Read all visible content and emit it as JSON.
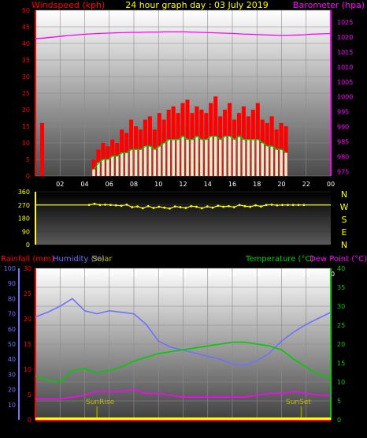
{
  "title": "24 hour graph day : 03 July 2019",
  "labels": {
    "windspeed": "Windspeed (kph)",
    "barometer": "Barometer (hpa)",
    "rainfall": "Rainfall (mm)",
    "humidity": "Humidity (%)",
    "solar": "Solar",
    "temperature": "Temperature (°C)",
    "dewpoint": "Dew Point (°C)",
    "sunrise": "SunRise",
    "sunset": "SunSet"
  },
  "colors": {
    "windspeed": "#ff0000",
    "gust": "#ff0000",
    "avgwind": "#00cc00",
    "barometer": "#ff00ff",
    "direction": "#ffff00",
    "humidity": "#7070ff",
    "temperature": "#00cc00",
    "dewpoint": "#ff00ff",
    "rain": "#ffff00",
    "sun": "#999900"
  },
  "compass": [
    "N",
    "W",
    "S",
    "E",
    "N"
  ],
  "chart_data": [
    {
      "type": "bar",
      "name": "wind",
      "x_ticks": [
        "02",
        "04",
        "06",
        "08",
        "10",
        "12",
        "14",
        "16",
        "18",
        "20",
        "22",
        "00"
      ],
      "left_axis": {
        "ticks": [
          0,
          5,
          10,
          15,
          20,
          25,
          30,
          35,
          40,
          45,
          50
        ],
        "ylim": [
          0,
          50
        ]
      },
      "right_axis": {
        "ticks": [
          975,
          980,
          985,
          990,
          995,
          1000,
          1005,
          1010,
          1015,
          1020,
          1025
        ],
        "ylim": [
          973.5,
          1029
        ]
      },
      "gust_hours": [
        0,
        0,
        0,
        0,
        0,
        0,
        0,
        0,
        0,
        0,
        0,
        0,
        0,
        0,
        0,
        0,
        0,
        0,
        0,
        0,
        0,
        0,
        0,
        0,
        0,
        0,
        0,
        0,
        0,
        0,
        0,
        0,
        0,
        0,
        0,
        0,
        0,
        0,
        0,
        0,
        0,
        0,
        0,
        0,
        0,
        0,
        0,
        0,
        0,
        0,
        0,
        0,
        0,
        0
      ],
      "gust": [
        0,
        16,
        0,
        0,
        0,
        0,
        0,
        0,
        0,
        0,
        0,
        0,
        5,
        8,
        10,
        9,
        11,
        10,
        14,
        13,
        17,
        15,
        14,
        17,
        18,
        14,
        19,
        17,
        20,
        21,
        19,
        22,
        23,
        19,
        21,
        20,
        19,
        22,
        24,
        18,
        20,
        22,
        17,
        19,
        21,
        18,
        20,
        22,
        17,
        16,
        18,
        14,
        16,
        15,
        0,
        0,
        0,
        0,
        0,
        0,
        0,
        0,
        0
      ],
      "average": [
        0,
        0,
        0,
        0,
        0,
        0,
        0,
        0,
        0,
        0,
        0,
        0,
        2,
        4,
        5,
        5,
        6,
        6,
        7,
        7,
        8,
        8,
        8,
        9,
        9,
        8,
        9,
        10,
        11,
        11,
        11,
        12,
        11,
        11,
        12,
        11,
        11,
        12,
        12,
        11,
        12,
        12,
        11,
        12,
        11,
        11,
        11,
        11,
        10,
        9,
        9,
        8,
        8,
        7,
        0,
        0,
        0,
        0,
        0,
        0,
        0,
        0,
        0
      ],
      "barometer": [
        1019.5,
        1019.7,
        1020.0,
        1020.3,
        1020.6,
        1020.8,
        1021.0,
        1021.2,
        1021.3,
        1021.4,
        1021.5,
        1021.6,
        1021.6,
        1021.7,
        1021.7,
        1021.8,
        1021.8,
        1021.8,
        1021.7,
        1021.6,
        1021.5,
        1021.4,
        1021.3,
        1021.2,
        1021.0,
        1020.9,
        1020.8,
        1020.7,
        1020.6,
        1020.6,
        1020.7,
        1020.8,
        1021.0,
        1021.1,
        1021.2
      ]
    },
    {
      "type": "scatter",
      "name": "wind direction",
      "y_ticks": [
        0,
        90,
        180,
        270,
        360
      ],
      "ylim": [
        0,
        360
      ],
      "values": [
        270,
        270,
        270,
        270,
        270,
        270,
        270,
        270,
        270,
        270,
        270,
        278,
        270,
        272,
        270,
        268,
        265,
        272,
        255,
        260,
        248,
        262,
        250,
        258,
        252,
        246,
        260,
        255,
        250,
        262,
        258,
        248,
        260,
        252,
        265,
        258,
        262,
        255,
        270,
        262,
        258,
        268,
        260,
        270,
        272,
        268,
        270,
        270,
        270,
        270,
        270,
        270,
        270,
        270,
        270,
        270
      ]
    },
    {
      "type": "line",
      "name": "temperature humidity",
      "x_ticks": [
        "02",
        "04",
        "06",
        "08",
        "10",
        "12",
        "14",
        "16",
        "18",
        "20",
        "22",
        "00"
      ],
      "rain_axis": {
        "ticks": [
          0,
          5,
          10,
          15,
          20,
          25,
          30
        ],
        "ylim": [
          0,
          30
        ]
      },
      "humidity_axis": {
        "ticks": [
          10,
          20,
          30,
          40,
          50,
          60,
          70,
          80,
          90,
          100
        ],
        "ylim": [
          0,
          100
        ]
      },
      "temp_axis": {
        "ticks": [
          0,
          5,
          10,
          15,
          20,
          25,
          30,
          35,
          40
        ],
        "ylim": [
          0,
          40
        ]
      },
      "hours": [
        0,
        1,
        2,
        3,
        4,
        5,
        6,
        7,
        8,
        9,
        10,
        11,
        12,
        13,
        14,
        15,
        16,
        17,
        18,
        19,
        20,
        21,
        22,
        23,
        24
      ],
      "humidity": [
        68,
        71,
        75,
        80,
        72,
        70,
        72,
        71,
        70,
        63,
        52,
        48,
        46,
        44,
        42,
        40,
        37,
        36,
        39,
        44,
        52,
        58,
        63,
        67,
        71
      ],
      "temperature": [
        11.5,
        10.5,
        10.0,
        13.0,
        13.5,
        12.5,
        13.0,
        14.0,
        15.5,
        16.5,
        17.5,
        18.0,
        18.5,
        19.0,
        19.5,
        20.0,
        20.5,
        20.5,
        20.0,
        19.5,
        18.5,
        16.0,
        14.0,
        12.0,
        11.0
      ],
      "dewpoint": [
        5.5,
        5.5,
        5.5,
        6.0,
        6.5,
        7.5,
        7.5,
        7.5,
        8.0,
        7.0,
        7.0,
        6.5,
        6.0,
        6.0,
        6.0,
        6.0,
        6.0,
        6.0,
        6.5,
        7.0,
        7.0,
        7.5,
        7.0,
        6.5,
        6.5
      ],
      "rain": [
        0,
        0,
        0,
        0,
        0,
        0,
        0,
        0,
        0,
        0,
        0,
        0,
        0,
        0,
        0,
        0,
        0,
        0,
        0,
        0,
        0,
        0,
        0,
        0,
        0
      ],
      "sunrise_hour": 5.0,
      "sunset_hour": 21.6
    }
  ]
}
